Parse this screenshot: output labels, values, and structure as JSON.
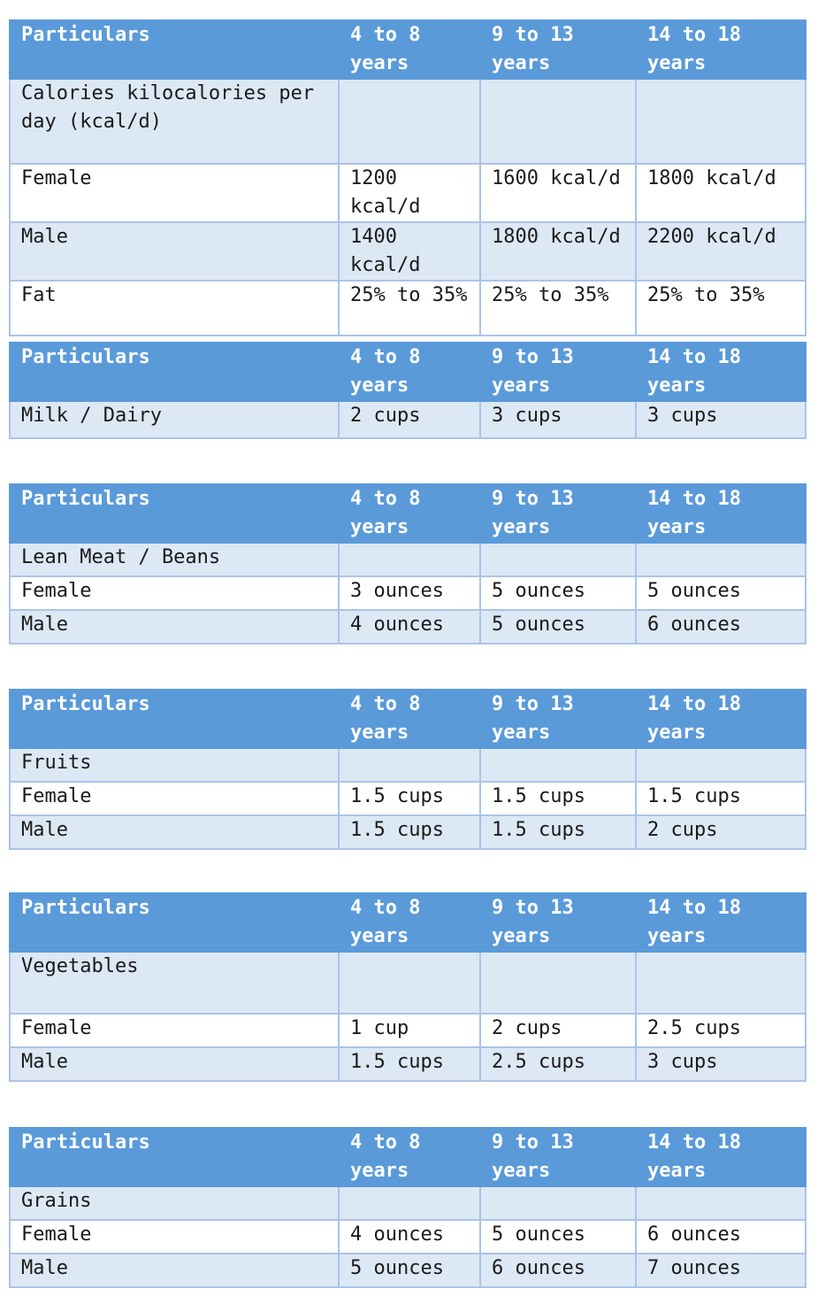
{
  "header": {
    "particulars": "Particulars",
    "age1": "4 to 8 years",
    "age2": "9 to 13 years",
    "age3": "14 to 18 years"
  },
  "tables": [
    {
      "rows": [
        {
          "label": "Calories kilocalories per day (kcal/d)",
          "v1": "",
          "v2": "",
          "v3": ""
        },
        {
          "label": "Female",
          "v1": "1200 kcal/d",
          "v2": "1600 kcal/d",
          "v3": "1800 kcal/d"
        },
        {
          "label": "Male",
          "v1": "1400 kcal/d",
          "v2": "1800 kcal/d",
          "v3": "2200 kcal/d"
        },
        {
          "label": "Fat",
          "v1": "25% to 35%",
          "v2": "25% to 35%",
          "v3": "25% to 35%"
        }
      ]
    },
    {
      "rows": [
        {
          "label": "Milk / Dairy",
          "v1": "2 cups",
          "v2": "3 cups",
          "v3": "3 cups"
        }
      ]
    },
    {
      "rows": [
        {
          "label": "Lean Meat / Beans",
          "v1": "",
          "v2": "",
          "v3": ""
        },
        {
          "label": "Female",
          "v1": "3 ounces",
          "v2": "5 ounces",
          "v3": "5 ounces"
        },
        {
          "label": "Male",
          "v1": "4 ounces",
          "v2": "5 ounces",
          "v3": "6 ounces"
        }
      ]
    },
    {
      "rows": [
        {
          "label": "Fruits",
          "v1": "",
          "v2": "",
          "v3": ""
        },
        {
          "label": "Female",
          "v1": "1.5 cups",
          "v2": "1.5 cups",
          "v3": "1.5 cups"
        },
        {
          "label": "Male",
          "v1": "1.5 cups",
          "v2": "1.5 cups",
          "v3": "2 cups"
        }
      ]
    },
    {
      "rows": [
        {
          "label": "Vegetables",
          "v1": "",
          "v2": "",
          "v3": ""
        },
        {
          "label": "Female",
          "v1": "1 cup",
          "v2": "2 cups",
          "v3": "2.5 cups"
        },
        {
          "label": "Male",
          "v1": "1.5 cups",
          "v2": "2.5 cups",
          "v3": "3 cups"
        }
      ]
    },
    {
      "rows": [
        {
          "label": "Grains",
          "v1": "",
          "v2": "",
          "v3": ""
        },
        {
          "label": "Female",
          "v1": "4 ounces",
          "v2": "5 ounces",
          "v3": "6 ounces"
        },
        {
          "label": "Male",
          "v1": "5 ounces",
          "v2": "6 ounces",
          "v3": "7 ounces"
        }
      ]
    }
  ]
}
